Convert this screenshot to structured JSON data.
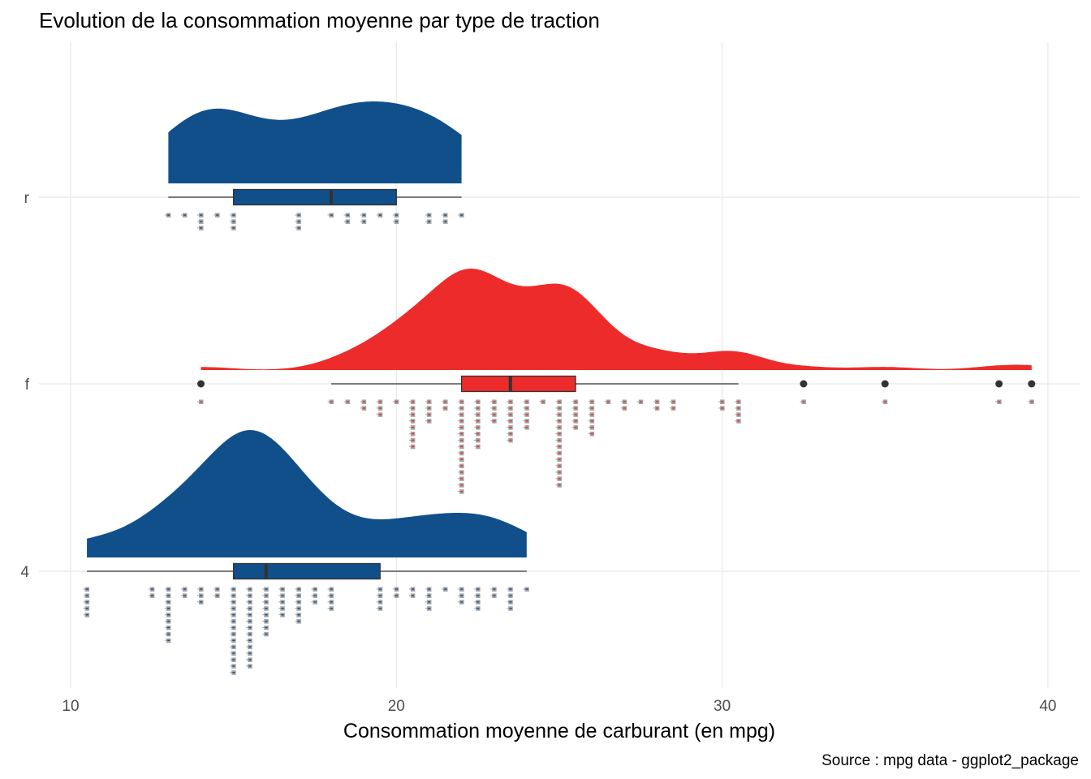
{
  "chart_data": {
    "type": "raincloud",
    "title": "Evolution de la consommation moyenne par type de traction",
    "xlabel": "Consommation moyenne de carburant (en mpg)",
    "ylabel": "",
    "caption": "Source : mpg data - ggplot2_package",
    "xlim": [
      9.5,
      40.9
    ],
    "x_ticks": [
      10,
      20,
      30,
      40
    ],
    "x_tick_labels": [
      "10",
      "20",
      "30",
      "40"
    ],
    "grid": true,
    "colors": {
      "r": "#114f8a",
      "f": "#ee2b2b",
      "4": "#114f8a",
      "dot": "#a3a3a3",
      "box_line": "#333333"
    },
    "groups": [
      {
        "name": "r",
        "box": {
          "min": 13,
          "q1": 15,
          "median": 18,
          "q3": 20,
          "max": 22
        },
        "outliers": [],
        "dots": [
          [
            13,
            1
          ],
          [
            13.5,
            1
          ],
          [
            14,
            3
          ],
          [
            14.5,
            1
          ],
          [
            15,
            3
          ],
          [
            17,
            3
          ],
          [
            18,
            1
          ],
          [
            18.5,
            2
          ],
          [
            19,
            2
          ],
          [
            19.5,
            1
          ],
          [
            20,
            2
          ],
          [
            21,
            2
          ],
          [
            21.5,
            2
          ],
          [
            22,
            1
          ]
        ]
      },
      {
        "name": "f",
        "box": {
          "min": 18,
          "q1": 22,
          "median": 23.5,
          "q3": 25.5,
          "max": 30.5
        },
        "outliers": [
          14,
          32.5,
          35,
          38.5,
          39.5
        ],
        "dots": [
          [
            14,
            1
          ],
          [
            18,
            1
          ],
          [
            18.5,
            1
          ],
          [
            19,
            2
          ],
          [
            19.5,
            3
          ],
          [
            20,
            1
          ],
          [
            20.5,
            8
          ],
          [
            21,
            4
          ],
          [
            21.5,
            2
          ],
          [
            22,
            15
          ],
          [
            22.5,
            8
          ],
          [
            23,
            4
          ],
          [
            23.5,
            7
          ],
          [
            24,
            5
          ],
          [
            24.5,
            1
          ],
          [
            25,
            14
          ],
          [
            25.5,
            5
          ],
          [
            26,
            6
          ],
          [
            26.5,
            1
          ],
          [
            27,
            2
          ],
          [
            27.5,
            1
          ],
          [
            28,
            2
          ],
          [
            28.5,
            2
          ],
          [
            30,
            2
          ],
          [
            30.5,
            4
          ],
          [
            32.5,
            1
          ],
          [
            35,
            1
          ],
          [
            38.5,
            1
          ],
          [
            39.5,
            1
          ]
        ]
      },
      {
        "name": "4",
        "box": {
          "min": 10.5,
          "q1": 15,
          "median": 16,
          "q3": 19.5,
          "max": 24
        },
        "outliers": [],
        "dots": [
          [
            10.5,
            5
          ],
          [
            12.5,
            2
          ],
          [
            13,
            9
          ],
          [
            13.5,
            2
          ],
          [
            14,
            3
          ],
          [
            14.5,
            2
          ],
          [
            15,
            14
          ],
          [
            15.5,
            13
          ],
          [
            16,
            8
          ],
          [
            16.5,
            5
          ],
          [
            17,
            6
          ],
          [
            17.5,
            3
          ],
          [
            18,
            4
          ],
          [
            19.5,
            4
          ],
          [
            20,
            2
          ],
          [
            20.5,
            2
          ],
          [
            21,
            4
          ],
          [
            21.5,
            1
          ],
          [
            22,
            3
          ],
          [
            22.5,
            4
          ],
          [
            23,
            2
          ],
          [
            23.5,
            4
          ],
          [
            24,
            1
          ]
        ]
      }
    ]
  }
}
